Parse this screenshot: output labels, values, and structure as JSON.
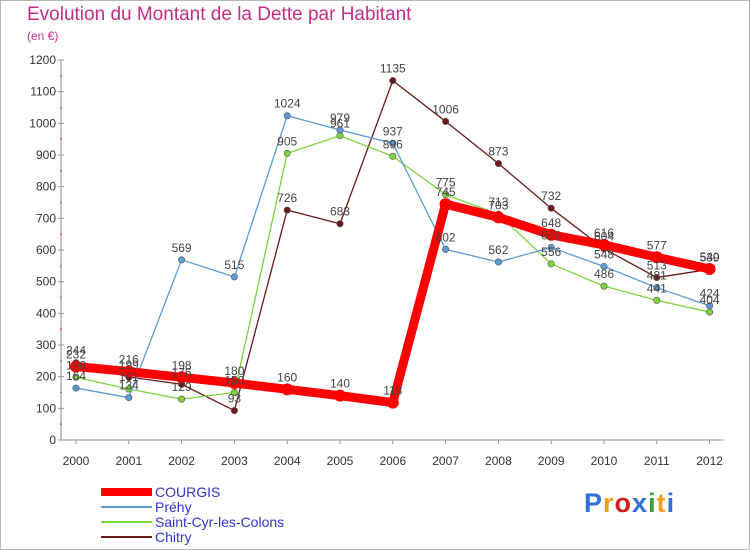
{
  "header": {
    "title": "Evolution du Montant de la Dette par Habitant",
    "unit": "(en €)"
  },
  "logo": {
    "letters": [
      "P",
      "r",
      "o",
      "x",
      "i",
      "t",
      "i"
    ],
    "colors": [
      "#2f6fd6",
      "#f0a020",
      "#d02020",
      "#2f6fd6",
      "#3aa03a",
      "#f0a020",
      "#2f6fd6"
    ]
  },
  "chart_data": {
    "type": "line",
    "title": "Evolution du Montant de la Dette par Habitant",
    "ylabel": "(en €)",
    "xlabel": "",
    "ylim": [
      0,
      1200
    ],
    "yticks": [
      0,
      100,
      200,
      300,
      400,
      500,
      600,
      700,
      800,
      900,
      1000,
      1100,
      1200
    ],
    "categories": [
      "2000",
      "2001",
      "2002",
      "2003",
      "2004",
      "2005",
      "2006",
      "2007",
      "2008",
      "2009",
      "2010",
      "2011",
      "2012"
    ],
    "grid": false,
    "legend_position": "bottom-left",
    "series": [
      {
        "name": "Chitry",
        "color": "#6b1a1a",
        "values": [
          244,
          199,
          176,
          93,
          726,
          683,
          1135,
          1006,
          873,
          732,
          604,
          513,
          539
        ]
      },
      {
        "name": "Saint-Cyr-les-Colons",
        "color": "#7dd43c",
        "values": [
          198,
          161,
          129,
          150,
          905,
          961,
          896,
          775,
          713,
          556,
          486,
          441,
          404
        ]
      },
      {
        "name": "Préhy",
        "color": "#5b9bd5",
        "values": [
          164,
          134,
          569,
          515,
          1024,
          979,
          937,
          602,
          562,
          608,
          548,
          481,
          424
        ]
      },
      {
        "name": "COURGIS",
        "color": "#ff0000",
        "values": [
          232,
          216,
          198,
          180,
          160,
          140,
          118,
          745,
          703,
          648,
          616,
          577,
          540
        ]
      }
    ]
  }
}
